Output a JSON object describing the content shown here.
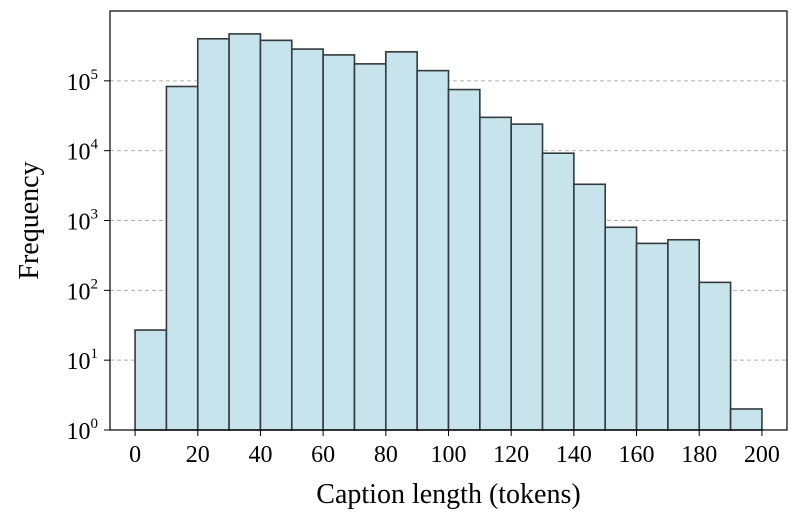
{
  "chart_data": {
    "type": "bar",
    "title": "",
    "xlabel": "Caption length (tokens)",
    "ylabel": "Frequency",
    "yscale": "log",
    "xlim": [
      -8,
      208
    ],
    "ylim": [
      1,
      1000000
    ],
    "bin_width": 10,
    "bins": [
      {
        "x_start": 0,
        "x_end": 10,
        "value": 27
      },
      {
        "x_start": 10,
        "x_end": 20,
        "value": 83000
      },
      {
        "x_start": 20,
        "x_end": 30,
        "value": 400000
      },
      {
        "x_start": 30,
        "x_end": 40,
        "value": 470000
      },
      {
        "x_start": 40,
        "x_end": 50,
        "value": 380000
      },
      {
        "x_start": 50,
        "x_end": 60,
        "value": 285000
      },
      {
        "x_start": 60,
        "x_end": 70,
        "value": 235000
      },
      {
        "x_start": 70,
        "x_end": 80,
        "value": 175000
      },
      {
        "x_start": 80,
        "x_end": 90,
        "value": 260000
      },
      {
        "x_start": 90,
        "x_end": 100,
        "value": 140000
      },
      {
        "x_start": 100,
        "x_end": 110,
        "value": 75000
      },
      {
        "x_start": 110,
        "x_end": 120,
        "value": 30000
      },
      {
        "x_start": 120,
        "x_end": 130,
        "value": 24000
      },
      {
        "x_start": 130,
        "x_end": 140,
        "value": 9200
      },
      {
        "x_start": 140,
        "x_end": 150,
        "value": 3300
      },
      {
        "x_start": 150,
        "x_end": 160,
        "value": 800
      },
      {
        "x_start": 160,
        "x_end": 170,
        "value": 470
      },
      {
        "x_start": 170,
        "x_end": 180,
        "value": 530
      },
      {
        "x_start": 180,
        "x_end": 190,
        "value": 130
      },
      {
        "x_start": 190,
        "x_end": 200,
        "value": 2
      }
    ],
    "x_ticks": [
      {
        "value": 0,
        "label": "0"
      },
      {
        "value": 20,
        "label": "20"
      },
      {
        "value": 40,
        "label": "40"
      },
      {
        "value": 60,
        "label": "60"
      },
      {
        "value": 80,
        "label": "80"
      },
      {
        "value": 100,
        "label": "100"
      },
      {
        "value": 120,
        "label": "120"
      },
      {
        "value": 140,
        "label": "140"
      },
      {
        "value": 160,
        "label": "160"
      },
      {
        "value": 180,
        "label": "180"
      },
      {
        "value": 200,
        "label": "200"
      }
    ],
    "y_ticks": [
      {
        "value": 1,
        "base": "10",
        "exp": "0"
      },
      {
        "value": 10,
        "base": "10",
        "exp": "1"
      },
      {
        "value": 100,
        "base": "10",
        "exp": "2"
      },
      {
        "value": 1000,
        "base": "10",
        "exp": "3"
      },
      {
        "value": 10000,
        "base": "10",
        "exp": "4"
      },
      {
        "value": 100000,
        "base": "10",
        "exp": "5"
      }
    ],
    "grid": {
      "y": true,
      "x": false,
      "style": "dashed"
    },
    "colors": {
      "bar_fill": "#c7e3ec",
      "bar_edge": "#333a3c",
      "grid": "#b0b0b0",
      "axis": "#000000"
    }
  }
}
